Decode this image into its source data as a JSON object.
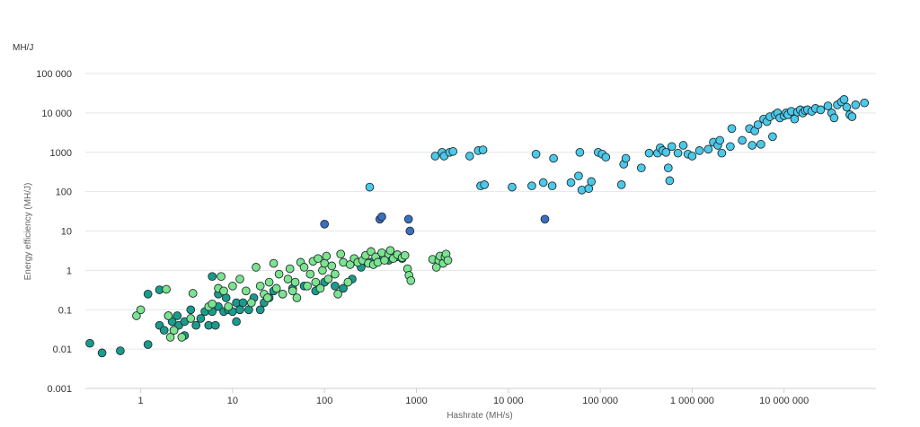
{
  "chart_data": {
    "type": "scatter",
    "title": "",
    "unit_label": "MH/J",
    "xlabel": "Hashrate (MH/s)",
    "ylabel": "Energy efficiency (MH/J)",
    "xscale": "log",
    "yscale": "log",
    "xlim": [
      0.25,
      100000000
    ],
    "ylim": [
      0.001,
      100000
    ],
    "x_ticks": [
      {
        "value": 1,
        "label": "1"
      },
      {
        "value": 10,
        "label": "10"
      },
      {
        "value": 100,
        "label": "100"
      },
      {
        "value": 1000,
        "label": "1000"
      },
      {
        "value": 10000,
        "label": "10 000"
      },
      {
        "value": 100000,
        "label": "100 000"
      },
      {
        "value": 1000000,
        "label": "1 000 000"
      },
      {
        "value": 10000000,
        "label": "10 000 000"
      }
    ],
    "y_ticks": [
      {
        "value": 0.001,
        "label": "0.001"
      },
      {
        "value": 0.01,
        "label": "0.01"
      },
      {
        "value": 0.1,
        "label": "0.1"
      },
      {
        "value": 1,
        "label": "1"
      },
      {
        "value": 10,
        "label": "10"
      },
      {
        "value": 100,
        "label": "100"
      },
      {
        "value": 1000,
        "label": "1000"
      },
      {
        "value": 10000,
        "label": "10 000"
      },
      {
        "value": 100000,
        "label": "100 000"
      }
    ],
    "grid": "horizontal",
    "legend": "none",
    "series": [
      {
        "color": "#1a9c8c",
        "points": [
          [
            0.28,
            0.014
          ],
          [
            0.38,
            0.008
          ],
          [
            0.6,
            0.009
          ],
          [
            1.2,
            0.013
          ],
          [
            1.2,
            0.25
          ],
          [
            1.6,
            0.32
          ],
          [
            1.6,
            0.04
          ],
          [
            1.8,
            0.03
          ],
          [
            2.0,
            0.07
          ],
          [
            2.2,
            0.05
          ],
          [
            2.3,
            0.03
          ],
          [
            2.5,
            0.07
          ],
          [
            2.6,
            0.04
          ],
          [
            3.0,
            0.022
          ],
          [
            3.0,
            0.05
          ],
          [
            3.5,
            0.1
          ],
          [
            4.0,
            0.04
          ],
          [
            4.5,
            0.06
          ],
          [
            5.0,
            0.09
          ],
          [
            5.5,
            0.04
          ],
          [
            6.0,
            0.7
          ],
          [
            6.0,
            0.09
          ],
          [
            6.5,
            0.04
          ],
          [
            7.0,
            0.12
          ],
          [
            7.0,
            0.25
          ],
          [
            8.0,
            0.09
          ],
          [
            8.5,
            0.2
          ],
          [
            9.0,
            0.1
          ],
          [
            10.0,
            0.09
          ],
          [
            11.0,
            0.05
          ],
          [
            11.0,
            0.15
          ],
          [
            12.0,
            0.1
          ],
          [
            13.0,
            0.15
          ],
          [
            15.0,
            0.1
          ],
          [
            17.0,
            0.2
          ],
          [
            20.0,
            0.1
          ],
          [
            22.0,
            0.15
          ],
          [
            25.0,
            0.2
          ],
          [
            28.0,
            0.3
          ],
          [
            35.0,
            0.25
          ],
          [
            45.0,
            0.35
          ],
          [
            60.0,
            0.4
          ],
          [
            80.0,
            0.3
          ],
          [
            100.0,
            0.5
          ],
          [
            130.0,
            0.4
          ],
          [
            160.0,
            0.35
          ],
          [
            200.0,
            0.6
          ],
          [
            250.0,
            1.2
          ],
          [
            320.0,
            1.6
          ],
          [
            400.0,
            2.0
          ],
          [
            500.0,
            1.8
          ],
          [
            600.0,
            2.2
          ],
          [
            700.0,
            2.0
          ]
        ]
      },
      {
        "color": "#7de38e",
        "points": [
          [
            0.9,
            0.07
          ],
          [
            1.0,
            0.1
          ],
          [
            1.9,
            0.33
          ],
          [
            2.0,
            0.07
          ],
          [
            2.1,
            0.02
          ],
          [
            2.3,
            0.03
          ],
          [
            2.8,
            0.02
          ],
          [
            3.5,
            0.06
          ],
          [
            3.7,
            0.26
          ],
          [
            5.5,
            0.12
          ],
          [
            6.0,
            0.14
          ],
          [
            7.0,
            0.35
          ],
          [
            7.5,
            0.7
          ],
          [
            8.0,
            0.3
          ],
          [
            9.0,
            0.12
          ],
          [
            10.0,
            0.4
          ],
          [
            12.0,
            0.6
          ],
          [
            14.0,
            0.3
          ],
          [
            16.0,
            0.15
          ],
          [
            18.0,
            1.2
          ],
          [
            20.0,
            0.4
          ],
          [
            22.0,
            0.25
          ],
          [
            24.0,
            0.2
          ],
          [
            25.0,
            0.5
          ],
          [
            28.0,
            1.5
          ],
          [
            30.0,
            0.35
          ],
          [
            32.0,
            0.8
          ],
          [
            35.0,
            0.25
          ],
          [
            40.0,
            0.6
          ],
          [
            42.0,
            1.1
          ],
          [
            45.0,
            0.3
          ],
          [
            48.0,
            0.5
          ],
          [
            50.0,
            0.2
          ],
          [
            55.0,
            1.6
          ],
          [
            60.0,
            1.2
          ],
          [
            65.0,
            0.4
          ],
          [
            70.0,
            0.8
          ],
          [
            75.0,
            1.7
          ],
          [
            80.0,
            0.5
          ],
          [
            85.0,
            2.0
          ],
          [
            90.0,
            0.35
          ],
          [
            95.0,
            1.0
          ],
          [
            100.0,
            1.5
          ],
          [
            105.0,
            2.3
          ],
          [
            110.0,
            0.6
          ],
          [
            120.0,
            1.3
          ],
          [
            130.0,
            0.8
          ],
          [
            140.0,
            0.25
          ],
          [
            150.0,
            2.6
          ],
          [
            160.0,
            1.6
          ],
          [
            180.0,
            0.5
          ],
          [
            190.0,
            1.4
          ],
          [
            210.0,
            2.0
          ],
          [
            230.0,
            1.6
          ],
          [
            260.0,
            1.8
          ],
          [
            280.0,
            2.4
          ],
          [
            300.0,
            1.5
          ],
          [
            320.0,
            3.0
          ],
          [
            340.0,
            1.4
          ],
          [
            360.0,
            2.2
          ],
          [
            380.0,
            1.6
          ],
          [
            420.0,
            2.8
          ],
          [
            450.0,
            1.8
          ],
          [
            500.0,
            2.6
          ],
          [
            520.0,
            3.2
          ],
          [
            560.0,
            2.0
          ],
          [
            620.0,
            2.5
          ],
          [
            700.0,
            2.1
          ],
          [
            750.0,
            2.4
          ],
          [
            800.0,
            1.1
          ],
          [
            830.0,
            0.75
          ],
          [
            870.0,
            0.55
          ],
          [
            1500.0,
            1.9
          ],
          [
            1650.0,
            1.2
          ],
          [
            1750.0,
            1.8
          ],
          [
            1800.0,
            2.3
          ],
          [
            1950.0,
            1.5
          ],
          [
            2050.0,
            2.2
          ],
          [
            2100.0,
            2.6
          ],
          [
            2200.0,
            1.8
          ]
        ]
      },
      {
        "color": "#3b6fbf",
        "points": [
          [
            100.0,
            15.0
          ],
          [
            400.0,
            20.0
          ],
          [
            420.0,
            23.0
          ],
          [
            820.0,
            20.0
          ],
          [
            850.0,
            10.0
          ],
          [
            25000.0,
            20.0
          ]
        ]
      },
      {
        "color": "#4cc8e8",
        "points": [
          [
            310.0,
            130.0
          ],
          [
            1600.0,
            800.0
          ],
          [
            1900.0,
            1000.0
          ],
          [
            2000.0,
            800.0
          ],
          [
            2300.0,
            1000.0
          ],
          [
            2500.0,
            1050.0
          ],
          [
            3800.0,
            800.0
          ],
          [
            4700.0,
            1100.0
          ],
          [
            5000.0,
            140.0
          ],
          [
            5300.0,
            1150.0
          ],
          [
            5500.0,
            150.0
          ],
          [
            11000.0,
            130.0
          ],
          [
            18000.0,
            140.0
          ],
          [
            20000.0,
            900.0
          ],
          [
            24000.0,
            170.0
          ],
          [
            30000.0,
            140.0
          ],
          [
            31000.0,
            700.0
          ],
          [
            48000.0,
            170.0
          ],
          [
            58000.0,
            250.0
          ],
          [
            60000.0,
            1000.0
          ],
          [
            63000.0,
            110.0
          ],
          [
            75000.0,
            120.0
          ],
          [
            80000.0,
            180.0
          ],
          [
            95000.0,
            1000.0
          ],
          [
            105000.0,
            900.0
          ],
          [
            115000.0,
            750.0
          ],
          [
            170000.0,
            150.0
          ],
          [
            180000.0,
            500.0
          ],
          [
            190000.0,
            700.0
          ],
          [
            280000.0,
            400.0
          ],
          [
            340000.0,
            950.0
          ],
          [
            420000.0,
            950.0
          ],
          [
            450000.0,
            1300.0
          ],
          [
            480000.0,
            1100.0
          ],
          [
            520000.0,
            1000.0
          ],
          [
            550000.0,
            400.0
          ],
          [
            570000.0,
            190.0
          ],
          [
            600000.0,
            1400.0
          ],
          [
            700000.0,
            950.0
          ],
          [
            800000.0,
            1500.0
          ],
          [
            900000.0,
            900.0
          ],
          [
            1000000.0,
            800.0
          ],
          [
            1200000.0,
            1100.0
          ],
          [
            1500000.0,
            1200.0
          ],
          [
            1700000.0,
            1800.0
          ],
          [
            1900000.0,
            1500.0
          ],
          [
            2000000.0,
            2000.0
          ],
          [
            2100000.0,
            950.0
          ],
          [
            2600000.0,
            1400.0
          ],
          [
            2700000.0,
            4000.0
          ],
          [
            3500000.0,
            2000.0
          ],
          [
            4200000.0,
            4000.0
          ],
          [
            4500000.0,
            1500.0
          ],
          [
            4800000.0,
            3500.0
          ],
          [
            5200000.0,
            5000.0
          ],
          [
            5600000.0,
            1600.0
          ],
          [
            6000000.0,
            7000.0
          ],
          [
            6500000.0,
            6000.0
          ],
          [
            7000000.0,
            8000.0
          ],
          [
            7500000.0,
            2500.0
          ],
          [
            8000000.0,
            9000.0
          ],
          [
            8500000.0,
            10000.0
          ],
          [
            9000000.0,
            7500.0
          ],
          [
            10000000.0,
            8500.0
          ],
          [
            10500000.0,
            10000.0
          ],
          [
            11000000.0,
            9000.0
          ],
          [
            12000000.0,
            11000.0
          ],
          [
            13000000.0,
            7000.0
          ],
          [
            14000000.0,
            10500.0
          ],
          [
            15000000.0,
            12000.0
          ],
          [
            16000000.0,
            10000.0
          ],
          [
            17000000.0,
            11500.0
          ],
          [
            18000000.0,
            12000.0
          ],
          [
            20000000.0,
            11000.0
          ],
          [
            22000000.0,
            13000.0
          ],
          [
            25000000.0,
            12000.0
          ],
          [
            30000000.0,
            15000.0
          ],
          [
            33000000.0,
            10000.0
          ],
          [
            35000000.0,
            7500.0
          ],
          [
            38000000.0,
            16000.0
          ],
          [
            42000000.0,
            19000.0
          ],
          [
            45000000.0,
            22000.0
          ],
          [
            48000000.0,
            14000.0
          ],
          [
            52000000.0,
            9000.0
          ],
          [
            55000000.0,
            8000.0
          ],
          [
            60000000.0,
            16000.0
          ],
          [
            75000000.0,
            18000.0
          ]
        ]
      }
    ]
  }
}
